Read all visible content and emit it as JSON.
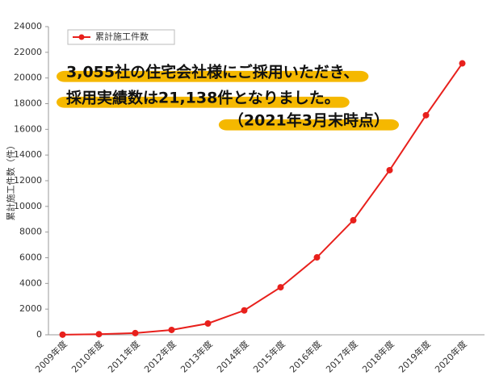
{
  "chart_data": {
    "type": "line",
    "y_label": "累計施工件数（件）",
    "categories": [
      "2009年度",
      "2010年度",
      "2011年度",
      "2012年度",
      "2013年度",
      "2014年度",
      "2015年度",
      "2016年度",
      "2017年度",
      "2018年度",
      "2019年度",
      "2020年度"
    ],
    "series": [
      {
        "name": "累計施工件数",
        "color": "#e8201c",
        "values": [
          10,
          50,
          130,
          380,
          880,
          1900,
          3700,
          6030,
          8920,
          12820,
          17100,
          21138
        ]
      }
    ],
    "ylim": [
      0,
      24000
    ],
    "yticks": [
      0,
      2000,
      4000,
      6000,
      8000,
      10000,
      12000,
      14000,
      16000,
      18000,
      20000,
      22000,
      24000
    ],
    "annotations": [
      "3,055社の住宅会社様にご採用いただき、",
      "採用実績数は21,138件となりました。",
      "（2021年3月末時点）"
    ],
    "highlight_color": "#f5b800"
  }
}
